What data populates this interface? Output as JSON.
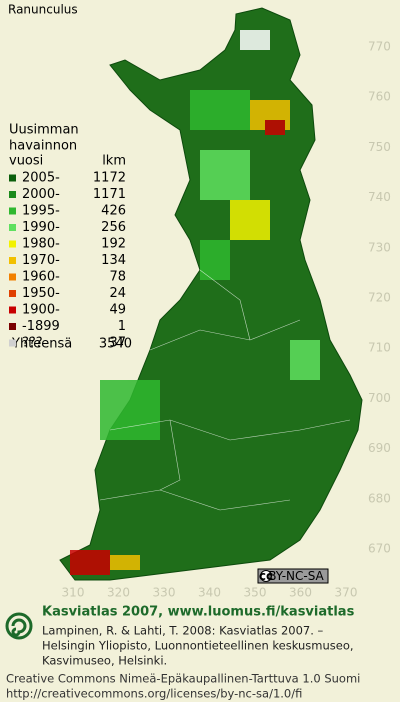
{
  "title": "Ranunculus",
  "legend": {
    "heading": [
      "Uusimman",
      "havainnon"
    ],
    "col_year": "vuosi",
    "col_count": "lkm",
    "rows": [
      {
        "label": "2005-",
        "count": 1172,
        "color": "#0b5e0b"
      },
      {
        "label": "2000-",
        "count": 1171,
        "color": "#1b8a1b"
      },
      {
        "label": "1995-",
        "count": 426,
        "color": "#2fb82f"
      },
      {
        "label": "1990-",
        "count": 256,
        "color": "#5fe05f"
      },
      {
        "label": "1980-",
        "count": 192,
        "color": "#f2f200"
      },
      {
        "label": "1970-",
        "count": 134,
        "color": "#f2c000"
      },
      {
        "label": "1960-",
        "count": 78,
        "color": "#f28000"
      },
      {
        "label": "1950-",
        "count": 24,
        "color": "#e04000"
      },
      {
        "label": "1900-",
        "count": 49,
        "color": "#c80000"
      },
      {
        "label": "-1899",
        "count": 1,
        "color": "#7a0000"
      },
      {
        "label": "???",
        "count": 37,
        "color": "#d0d0d0"
      }
    ],
    "total_label": "Yhteensä",
    "total": 3540
  },
  "axes": {
    "y_labels": [
      770,
      760,
      750,
      740,
      730,
      720,
      710,
      700,
      690,
      680,
      670
    ],
    "x_labels": [
      310,
      320,
      330,
      340,
      350,
      360,
      370
    ]
  },
  "license_badge": [
    "cc",
    "BY-NC-SA"
  ],
  "footer": {
    "site": "Kasviatlas 2007, www.luomus.fi/kasviatlas",
    "citation": [
      "Lampinen, R. & Lahti, T. 2008: Kasviatlas 2007. –",
      "Helsingin Yliopisto, Luonnontieteellinen keskusmuseo,",
      "Kasvimuseo, Helsinki."
    ],
    "license": [
      "Creative Commons Nimeä-Epäkaupallinen-Tarttuva 1.0 Suomi",
      "http://creativecommons.org/licenses/by-nc-sa/1.0/fi"
    ]
  }
}
